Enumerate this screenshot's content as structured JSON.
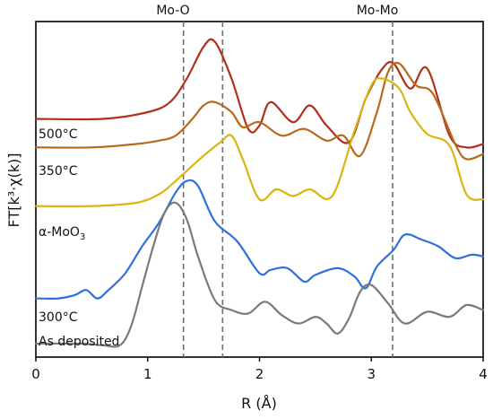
{
  "chart_data": {
    "type": "line",
    "title": "",
    "xlabel": "R (Å)",
    "ylabel": "FT[k³·χ(k)]",
    "xlim": [
      0,
      4
    ],
    "x_ticks": [
      "0",
      "1",
      "2",
      "3",
      "4"
    ],
    "y_ticks_shown": false,
    "grid": false,
    "legend": "none",
    "reference_lines": [
      {
        "label": "Mo-O",
        "x": [
          1.32,
          1.67
        ],
        "style": "dashed",
        "color": "#6e6e6e"
      },
      {
        "label": "Mo-Mo",
        "x": [
          3.19
        ],
        "style": "dashed",
        "color": "#6e6e6e"
      }
    ],
    "series": [
      {
        "name": "500°C",
        "color": "#b0301b",
        "x": [
          0.0,
          0.6,
          1.0,
          1.2,
          1.35,
          1.5,
          1.6,
          1.75,
          1.9,
          2.0,
          2.1,
          2.3,
          2.45,
          2.6,
          2.8,
          2.95,
          3.1,
          3.2,
          3.35,
          3.5,
          3.7,
          3.85,
          4.0
        ],
        "y": [
          0.62,
          0.62,
          0.66,
          0.72,
          0.86,
          1.05,
          1.08,
          0.86,
          0.56,
          0.58,
          0.72,
          0.6,
          0.7,
          0.58,
          0.48,
          0.74,
          0.92,
          0.95,
          0.8,
          0.92,
          0.52,
          0.45,
          0.47
        ]
      },
      {
        "name": "350°C",
        "color": "#b86a1b",
        "x": [
          0.0,
          0.5,
          0.9,
          1.1,
          1.25,
          1.4,
          1.5,
          1.6,
          1.75,
          1.85,
          2.0,
          2.2,
          2.4,
          2.6,
          2.75,
          2.9,
          3.05,
          3.15,
          3.25,
          3.4,
          3.55,
          3.75,
          3.85,
          4.0
        ],
        "y": [
          0.45,
          0.45,
          0.47,
          0.49,
          0.52,
          0.62,
          0.7,
          0.72,
          0.66,
          0.57,
          0.6,
          0.52,
          0.56,
          0.49,
          0.52,
          0.4,
          0.66,
          0.9,
          0.95,
          0.82,
          0.77,
          0.47,
          0.38,
          0.41
        ]
      },
      {
        "name": "α-MoO₃",
        "color": "#d9b510",
        "x": [
          0.0,
          0.5,
          0.9,
          1.1,
          1.2,
          1.35,
          1.5,
          1.65,
          1.75,
          1.85,
          2.0,
          2.15,
          2.3,
          2.45,
          2.65,
          2.85,
          3.0,
          3.1,
          3.25,
          3.35,
          3.5,
          3.7,
          3.85,
          4.0
        ],
        "y": [
          0.1,
          0.1,
          0.12,
          0.17,
          0.22,
          0.31,
          0.4,
          0.48,
          0.52,
          0.38,
          0.14,
          0.2,
          0.16,
          0.2,
          0.16,
          0.55,
          0.82,
          0.86,
          0.8,
          0.66,
          0.53,
          0.46,
          0.17,
          0.14
        ]
      },
      {
        "name": "300°C",
        "color": "#2f6fe0",
        "x": [
          0.0,
          0.2,
          0.35,
          0.45,
          0.55,
          0.65,
          0.8,
          0.95,
          1.1,
          1.25,
          1.35,
          1.45,
          1.6,
          1.8,
          2.0,
          2.1,
          2.25,
          2.4,
          2.5,
          2.7,
          2.85,
          2.95,
          3.05,
          3.2,
          3.3,
          3.45,
          3.6,
          3.75,
          3.9,
          4.0
        ],
        "y": [
          -0.45,
          -0.45,
          -0.43,
          -0.4,
          -0.45,
          -0.4,
          -0.3,
          -0.14,
          0.0,
          0.18,
          0.25,
          0.22,
          0.01,
          -0.11,
          -0.3,
          -0.28,
          -0.27,
          -0.35,
          -0.31,
          -0.27,
          -0.32,
          -0.39,
          -0.26,
          -0.16,
          -0.07,
          -0.1,
          -0.14,
          -0.21,
          -0.19,
          -0.2
        ]
      },
      {
        "name": "As deposited",
        "color": "#7a7a7a",
        "x": [
          0.0,
          0.4,
          0.6,
          0.75,
          0.85,
          0.95,
          1.05,
          1.15,
          1.25,
          1.35,
          1.45,
          1.6,
          1.75,
          1.9,
          2.05,
          2.2,
          2.35,
          2.5,
          2.6,
          2.7,
          2.8,
          2.9,
          3.0,
          3.15,
          3.3,
          3.5,
          3.7,
          3.85,
          4.0
        ],
        "y": [
          -0.72,
          -0.72,
          -0.73,
          -0.73,
          -0.62,
          -0.38,
          -0.14,
          0.06,
          0.12,
          0.02,
          -0.2,
          -0.46,
          -0.52,
          -0.54,
          -0.47,
          -0.55,
          -0.6,
          -0.56,
          -0.6,
          -0.66,
          -0.57,
          -0.41,
          -0.37,
          -0.48,
          -0.6,
          -0.53,
          -0.56,
          -0.49,
          -0.52
        ]
      }
    ],
    "curve_labels": [
      {
        "text": "500°C",
        "series": 0
      },
      {
        "text": "350°C",
        "series": 1
      },
      {
        "text": "α-MoO",
        "subscript": "3",
        "series": 2
      },
      {
        "text": "300°C",
        "series": 3
      },
      {
        "text": "As deposited",
        "series": 4
      }
    ]
  }
}
